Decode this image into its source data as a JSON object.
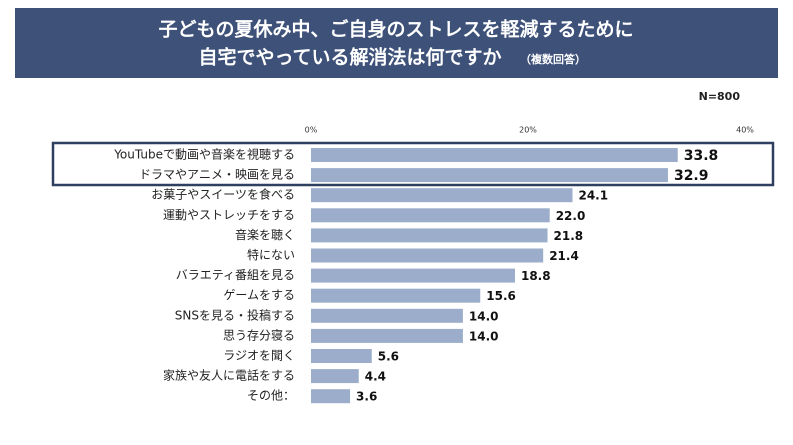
{
  "chart_data": {
    "type": "hbar",
    "title": [
      "子どもの夏休み中、ご自身のストレスを軽減するために",
      "自宅でやっている解消法は何ですか"
    ],
    "subtitle": "（複数回答）",
    "note": "N=800",
    "categories": [
      "YouTubeで動画や音楽を視聴する",
      "ドラマやアニメ・映画を見る",
      "お菓子やスイーツを食べる",
      "運動やストレッチをする",
      "音楽を聴く",
      "特にない",
      "バラエティ番組を見る",
      "ゲームをする",
      "SNSを見る・投稿する",
      "思う存分寝る",
      "ラジオを聞く",
      "家族や友人に電話をする",
      "その他："
    ],
    "values": [
      33.8,
      32.9,
      24.1,
      22.0,
      21.8,
      21.4,
      18.8,
      15.6,
      14.0,
      14.0,
      5.6,
      4.4,
      3.6
    ],
    "value_labels": [
      "33.8",
      "32.9",
      "24.1",
      "22.0",
      "21.8",
      "21.4",
      "18.8",
      "15.6",
      "14.0",
      "14.0",
      "5.6",
      "4.4",
      "3.6"
    ],
    "color": "#9badcb",
    "xlim": [
      0,
      40
    ],
    "xticks": [
      {
        "value": 0,
        "label": "0%"
      },
      {
        "value": 20,
        "label": "20%"
      },
      {
        "value": 40,
        "label": "40%"
      }
    ]
  }
}
